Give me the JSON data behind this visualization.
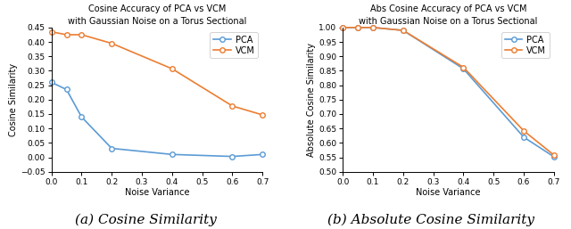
{
  "left": {
    "title_line1": "Cosine Accuracy of PCA vs VCM",
    "title_line2": "with Gaussian Noise on a Torus Sectional",
    "xlabel": "Noise Variance",
    "ylabel": "Cosine Similarity",
    "caption": "(a) Cosine Similarity",
    "x": [
      0,
      0.05,
      0.1,
      0.2,
      0.4,
      0.6,
      0.7
    ],
    "pca_y": [
      0.26,
      0.235,
      0.14,
      0.031,
      0.01,
      0.003,
      0.01
    ],
    "vcm_y": [
      0.435,
      0.425,
      0.425,
      0.395,
      0.307,
      0.178,
      0.147
    ],
    "xlim": [
      0,
      0.7
    ],
    "ylim": [
      -0.05,
      0.45
    ],
    "yticks": [
      -0.05,
      0,
      0.05,
      0.1,
      0.15,
      0.2,
      0.25,
      0.3,
      0.35,
      0.4,
      0.45
    ],
    "xticks": [
      0,
      0.1,
      0.2,
      0.3,
      0.4,
      0.5,
      0.6,
      0.7
    ]
  },
  "right": {
    "title_line1": "Abs Cosine Accuracy of PCA vs VCM",
    "title_line2": "with Gaussian Noise on a Torus Sectional",
    "xlabel": "Noise Variance",
    "ylabel": "Absolute Cosine Similarity",
    "caption": "(b) Absolute Cosine Similarity",
    "x": [
      0,
      0.05,
      0.1,
      0.2,
      0.4,
      0.6,
      0.7
    ],
    "pca_y": [
      1.0,
      1.0,
      1.0,
      0.99,
      0.857,
      0.62,
      0.552
    ],
    "vcm_y": [
      1.0,
      1.0,
      1.0,
      0.99,
      0.862,
      0.642,
      0.558
    ],
    "xlim": [
      0,
      0.7
    ],
    "ylim": [
      0.5,
      1.0
    ],
    "yticks": [
      0.5,
      0.55,
      0.6,
      0.65,
      0.7,
      0.75,
      0.8,
      0.85,
      0.9,
      0.95,
      1.0
    ],
    "xticks": [
      0,
      0.1,
      0.2,
      0.3,
      0.4,
      0.5,
      0.6,
      0.7
    ]
  },
  "pca_color": "#5B9BD5",
  "vcm_color": "#ED7D31",
  "marker": "o",
  "markersize": 4,
  "linewidth": 1.2,
  "title_fontsize": 7,
  "axis_label_fontsize": 7,
  "tick_fontsize": 6.5,
  "legend_fontsize": 7,
  "caption_fontsize": 11
}
